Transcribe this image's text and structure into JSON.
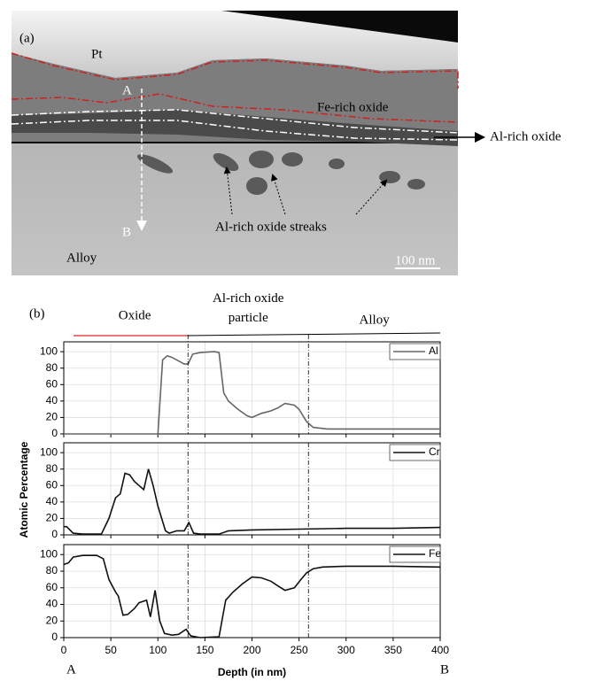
{
  "panel_a": {
    "label": "(a)",
    "pt": "Pt",
    "point_a": "A",
    "fe_oxide": "Fe-rich oxide",
    "al_oxide": "Al-rich oxide",
    "streaks": "Al-rich oxide streaks",
    "point_b": "B",
    "alloy": "Alloy",
    "scale_bar": "100 nm"
  },
  "panel_b": {
    "label": "(b)",
    "regions": [
      "Oxide",
      "Al-rich oxide particle",
      "Alloy"
    ],
    "start_label": "A",
    "end_label": "B",
    "boundaries": [
      132,
      260
    ]
  },
  "chart_data": [
    {
      "type": "line",
      "xlim": [
        0,
        400
      ],
      "ylim": [
        0,
        112
      ],
      "xticks": [
        0,
        50,
        100,
        150,
        200,
        250,
        300,
        350,
        400
      ],
      "yticks": [
        0,
        20,
        40,
        60,
        80,
        100
      ],
      "grid": true,
      "x": [
        0,
        50,
        95,
        100,
        105,
        110,
        115,
        120,
        128,
        132,
        137,
        145,
        160,
        165,
        170,
        175,
        185,
        195,
        200,
        210,
        220,
        228,
        235,
        245,
        250,
        258,
        265,
        280,
        300,
        350,
        400
      ],
      "series": [
        {
          "name": "Al",
          "color": "#666666",
          "values": [
            0,
            0,
            0,
            0,
            90,
            95,
            93,
            90,
            85,
            85,
            97,
            99,
            100,
            99,
            50,
            40,
            30,
            22,
            20,
            25,
            28,
            32,
            37,
            35,
            30,
            15,
            8,
            6,
            6,
            6,
            6
          ]
        }
      ]
    },
    {
      "type": "line",
      "xlim": [
        0,
        400
      ],
      "ylim": [
        0,
        112
      ],
      "xticks": [
        0,
        50,
        100,
        150,
        200,
        250,
        300,
        350,
        400
      ],
      "yticks": [
        0,
        20,
        40,
        60,
        80,
        100
      ],
      "grid": true,
      "ylabel": "Atomic Percentage",
      "x": [
        0,
        3,
        10,
        20,
        40,
        48,
        55,
        60,
        65,
        70,
        75,
        80,
        85,
        90,
        95,
        100,
        108,
        112,
        120,
        128,
        133,
        138,
        145,
        165,
        175,
        200,
        250,
        300,
        350,
        400
      ],
      "series": [
        {
          "name": "Cr",
          "color": "#111111",
          "values": [
            10,
            10,
            2,
            1,
            1,
            20,
            45,
            50,
            75,
            73,
            65,
            60,
            55,
            80,
            60,
            35,
            5,
            2,
            5,
            5,
            15,
            2,
            1,
            1,
            5,
            6,
            7,
            8,
            8,
            9
          ]
        }
      ]
    },
    {
      "type": "line",
      "xlim": [
        0,
        400
      ],
      "ylim": [
        0,
        112
      ],
      "xticks": [
        0,
        50,
        100,
        150,
        200,
        250,
        300,
        350,
        400
      ],
      "yticks": [
        0,
        20,
        40,
        60,
        80,
        100
      ],
      "grid": true,
      "xlabel": "Depth (in nm)",
      "x": [
        0,
        5,
        10,
        20,
        35,
        42,
        48,
        55,
        58,
        63,
        68,
        75,
        80,
        88,
        92,
        97,
        102,
        107,
        115,
        122,
        130,
        135,
        145,
        165,
        172,
        180,
        190,
        200,
        210,
        220,
        228,
        235,
        245,
        252,
        258,
        265,
        275,
        300,
        350,
        400
      ],
      "series": [
        {
          "name": "Fe",
          "color": "#111111",
          "values": [
            88,
            90,
            97,
            99,
            99,
            95,
            70,
            55,
            50,
            27,
            28,
            35,
            42,
            45,
            25,
            57,
            20,
            5,
            3,
            4,
            10,
            2,
            0,
            1,
            45,
            55,
            65,
            73,
            72,
            68,
            62,
            57,
            60,
            70,
            78,
            83,
            85,
            86,
            86,
            85
          ]
        }
      ]
    }
  ]
}
